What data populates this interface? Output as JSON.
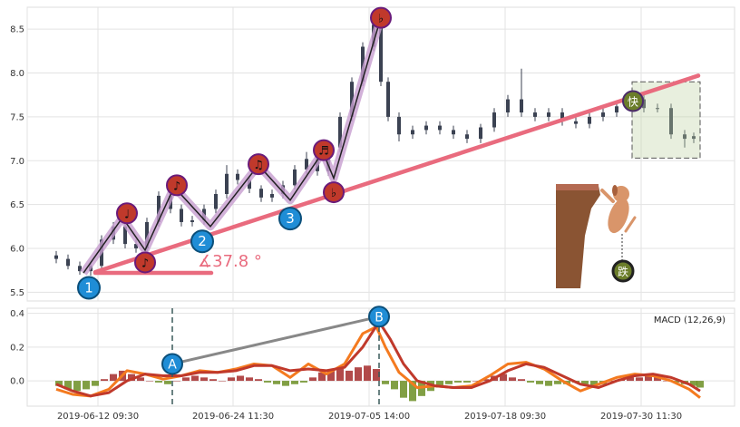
{
  "chart_data": [
    {
      "type": "line",
      "panel": "price",
      "chart_style": "candlestick with annotated wave pattern",
      "ylim": [
        5.4,
        8.75
      ],
      "yticks": [
        "5.5",
        "6.0",
        "6.5",
        "7.0",
        "7.5",
        "8.0",
        "8.5"
      ],
      "xlim": [
        0,
        1000
      ],
      "wave_path": {
        "x": [
          92,
          135,
          160,
          192,
          232,
          285,
          320,
          356,
          368,
          419
        ],
        "y": [
          5.72,
          6.35,
          5.98,
          6.7,
          6.25,
          6.95,
          6.55,
          7.1,
          6.8,
          8.6
        ]
      },
      "labels": [
        {
          "text": "1",
          "x": 98,
          "y": 5.55,
          "style": "blue"
        },
        {
          "text": "2",
          "x": 223,
          "y": 6.08,
          "style": "blue"
        },
        {
          "text": "3",
          "x": 320,
          "y": 6.34,
          "style": "blue"
        },
        {
          "text": "♩",
          "x": 140,
          "y": 6.4,
          "style": "red"
        },
        {
          "text": "♪",
          "x": 160,
          "y": 5.84,
          "style": "red"
        },
        {
          "text": "♪",
          "x": 195,
          "y": 6.72,
          "style": "red"
        },
        {
          "text": "♫",
          "x": 285,
          "y": 6.96,
          "style": "red"
        },
        {
          "text": "♬",
          "x": 357,
          "y": 7.12,
          "style": "red"
        },
        {
          "text": "♭",
          "x": 368,
          "y": 6.64,
          "style": "red"
        },
        {
          "text": "♭",
          "x": 420,
          "y": 8.63,
          "style": "red"
        }
      ],
      "trendline": {
        "x": [
          105,
          770
        ],
        "y": [
          5.73,
          7.97
        ],
        "color": "#e96b7e"
      },
      "baseline": {
        "x": [
          105,
          233
        ],
        "y": [
          5.72,
          5.72
        ]
      },
      "angle_label": "∡37.8 °",
      "mark_up": "快",
      "mark_down": "跌",
      "box": {
        "x": [
          697,
          772
        ],
        "y": [
          7.03,
          7.9
        ]
      },
      "candles_summary": {
        "x": [
          62,
          75,
          88,
          100,
          112,
          125,
          138,
          150,
          162,
          175,
          188,
          200,
          212,
          225,
          238,
          250,
          262,
          275,
          288,
          300,
          312,
          325,
          338,
          350,
          362,
          375,
          388,
          400,
          412,
          420,
          428,
          440,
          455,
          470,
          485,
          500,
          515,
          530,
          545,
          560,
          575,
          590,
          605,
          620,
          635,
          650,
          665,
          680,
          695,
          710,
          725,
          740,
          755,
          765
        ],
        "open": [
          5.92,
          5.88,
          5.8,
          5.74,
          5.8,
          6.1,
          6.25,
          6.05,
          6.0,
          6.3,
          6.6,
          6.45,
          6.3,
          6.32,
          6.45,
          6.62,
          6.85,
          6.78,
          6.68,
          6.58,
          6.62,
          6.72,
          6.9,
          7.02,
          6.88,
          7.15,
          7.5,
          7.9,
          8.3,
          8.55,
          7.9,
          7.5,
          7.3,
          7.35,
          7.4,
          7.35,
          7.3,
          7.25,
          7.38,
          7.55,
          7.7,
          7.55,
          7.5,
          7.55,
          7.45,
          7.42,
          7.5,
          7.55,
          7.62,
          7.7,
          7.6,
          7.6,
          7.3,
          7.25
        ],
        "close": [
          5.88,
          5.8,
          5.74,
          5.8,
          6.1,
          6.25,
          6.05,
          6.0,
          6.3,
          6.6,
          6.45,
          6.3,
          6.32,
          6.45,
          6.62,
          6.85,
          6.78,
          6.68,
          6.58,
          6.62,
          6.72,
          6.9,
          7.02,
          6.88,
          7.15,
          7.5,
          7.9,
          8.3,
          8.55,
          7.9,
          7.5,
          7.3,
          7.35,
          7.4,
          7.35,
          7.3,
          7.25,
          7.38,
          7.55,
          7.7,
          7.55,
          7.5,
          7.55,
          7.45,
          7.42,
          7.5,
          7.55,
          7.62,
          7.7,
          7.6,
          7.6,
          7.3,
          7.25,
          7.28
        ],
        "high": [
          5.97,
          5.93,
          5.85,
          5.85,
          6.15,
          6.3,
          6.3,
          6.1,
          6.35,
          6.65,
          6.7,
          6.5,
          6.37,
          6.5,
          6.67,
          6.95,
          6.9,
          6.83,
          6.72,
          6.67,
          6.77,
          6.95,
          7.1,
          7.07,
          7.2,
          7.55,
          7.95,
          8.35,
          8.6,
          8.62,
          7.95,
          7.55,
          7.4,
          7.45,
          7.45,
          7.4,
          7.35,
          7.42,
          7.6,
          7.75,
          8.05,
          7.6,
          7.6,
          7.6,
          7.5,
          7.55,
          7.6,
          7.67,
          7.75,
          7.75,
          7.65,
          7.65,
          7.35,
          7.32
        ],
        "low": [
          5.83,
          5.76,
          5.7,
          5.69,
          5.75,
          6.05,
          6.0,
          5.95,
          5.95,
          6.25,
          6.4,
          6.25,
          6.25,
          6.27,
          6.4,
          6.57,
          6.73,
          6.63,
          6.53,
          6.53,
          6.57,
          6.67,
          6.85,
          6.83,
          6.83,
          7.1,
          7.45,
          7.85,
          8.25,
          7.85,
          7.45,
          7.22,
          7.25,
          7.3,
          7.3,
          7.25,
          7.2,
          7.2,
          7.33,
          7.5,
          7.5,
          7.45,
          7.45,
          7.4,
          7.37,
          7.37,
          7.45,
          7.5,
          7.57,
          7.55,
          7.55,
          7.25,
          7.15,
          7.2
        ]
      }
    },
    {
      "type": "bar",
      "panel": "macd",
      "title": "MACD (12,26,9)",
      "ylim": [
        -0.15,
        0.43
      ],
      "yticks": [
        "0.0",
        "0.2",
        "0.4"
      ],
      "xticks": [
        {
          "x": 108,
          "label": "2019-06-12 09:30"
        },
        {
          "x": 257,
          "label": "2019-06-24 11:30"
        },
        {
          "x": 407,
          "label": "2019-07-05 14:00"
        },
        {
          "x": 557,
          "label": "2019-07-18 09:30"
        },
        {
          "x": 707,
          "label": "2019-07-30 11:30"
        }
      ],
      "divergence": {
        "from": {
          "label": "A",
          "x": 190,
          "y": 0.1
        },
        "to": {
          "label": "B",
          "x": 418,
          "y": 0.38
        },
        "vlines_x": [
          190,
          418
        ]
      },
      "series": [
        {
          "color": "#f47a1f",
          "x": [
            62,
            80,
            100,
            120,
            140,
            160,
            180,
            200,
            220,
            240,
            260,
            280,
            300,
            320,
            340,
            360,
            380,
            400,
            415,
            425,
            440,
            460,
            480,
            500,
            520,
            540,
            560,
            580,
            600,
            620,
            640,
            660,
            680,
            700,
            720,
            740,
            760,
            772
          ],
          "y": [
            -0.05,
            -0.08,
            -0.09,
            -0.05,
            0.06,
            0.04,
            0.01,
            0.03,
            0.06,
            0.05,
            0.07,
            0.1,
            0.09,
            0.02,
            0.1,
            0.04,
            0.1,
            0.28,
            0.32,
            0.2,
            0.05,
            -0.04,
            -0.03,
            -0.04,
            -0.03,
            0.03,
            0.1,
            0.11,
            0.07,
            0.0,
            -0.06,
            -0.02,
            0.02,
            0.04,
            0.03,
            0.0,
            -0.05,
            -0.1
          ]
        },
        {
          "color": "#c0392b",
          "x": [
            62,
            80,
            100,
            120,
            140,
            160,
            180,
            200,
            220,
            240,
            260,
            280,
            300,
            320,
            340,
            360,
            380,
            400,
            418,
            430,
            445,
            460,
            480,
            500,
            520,
            540,
            560,
            580,
            600,
            620,
            640,
            660,
            680,
            700,
            720,
            740,
            760,
            772
          ],
          "y": [
            -0.02,
            -0.06,
            -0.09,
            -0.07,
            0.0,
            0.04,
            0.03,
            0.03,
            0.05,
            0.05,
            0.06,
            0.09,
            0.09,
            0.06,
            0.07,
            0.06,
            0.08,
            0.2,
            0.35,
            0.25,
            0.1,
            0.0,
            -0.03,
            -0.04,
            -0.04,
            0.0,
            0.06,
            0.1,
            0.08,
            0.03,
            -0.02,
            -0.04,
            0.0,
            0.03,
            0.04,
            0.02,
            -0.02,
            -0.06
          ]
        }
      ],
      "histogram_x": [
        65,
        75,
        85,
        95,
        105,
        115,
        125,
        135,
        145,
        155,
        165,
        175,
        185,
        195,
        205,
        215,
        225,
        235,
        245,
        255,
        265,
        275,
        285,
        295,
        305,
        315,
        325,
        335,
        345,
        355,
        365,
        375,
        385,
        395,
        405,
        415,
        425,
        435,
        445,
        455,
        465,
        475,
        485,
        495,
        505,
        515,
        525,
        535,
        545,
        555,
        565,
        575,
        585,
        595,
        605,
        615,
        625,
        635,
        645,
        655,
        665,
        675,
        685,
        695,
        705,
        715,
        725,
        735,
        745,
        755,
        765,
        772
      ],
      "histogram_values": [
        -0.03,
        -0.05,
        -0.06,
        -0.05,
        -0.03,
        0.01,
        0.04,
        0.06,
        0.04,
        0.02,
        0.0,
        -0.01,
        -0.02,
        0.0,
        0.02,
        0.03,
        0.02,
        0.01,
        0.0,
        0.02,
        0.03,
        0.02,
        0.01,
        -0.01,
        -0.02,
        -0.03,
        -0.02,
        -0.01,
        0.02,
        0.05,
        0.06,
        0.07,
        0.06,
        0.08,
        0.09,
        0.07,
        -0.02,
        -0.05,
        -0.1,
        -0.12,
        -0.09,
        -0.06,
        -0.04,
        -0.02,
        -0.01,
        -0.01,
        0.0,
        0.01,
        0.03,
        0.04,
        0.02,
        0.01,
        -0.01,
        -0.02,
        -0.03,
        -0.02,
        -0.02,
        -0.01,
        -0.02,
        -0.03,
        -0.02,
        0.0,
        0.01,
        0.02,
        0.02,
        0.03,
        0.02,
        0.0,
        -0.01,
        -0.02,
        -0.03,
        -0.04
      ]
    }
  ],
  "colors": {
    "up": "#c0392b",
    "down": "#5b6b32",
    "candle": "#3b4252",
    "blue": "#1f8dd6",
    "red_marker": "#c0392b"
  }
}
